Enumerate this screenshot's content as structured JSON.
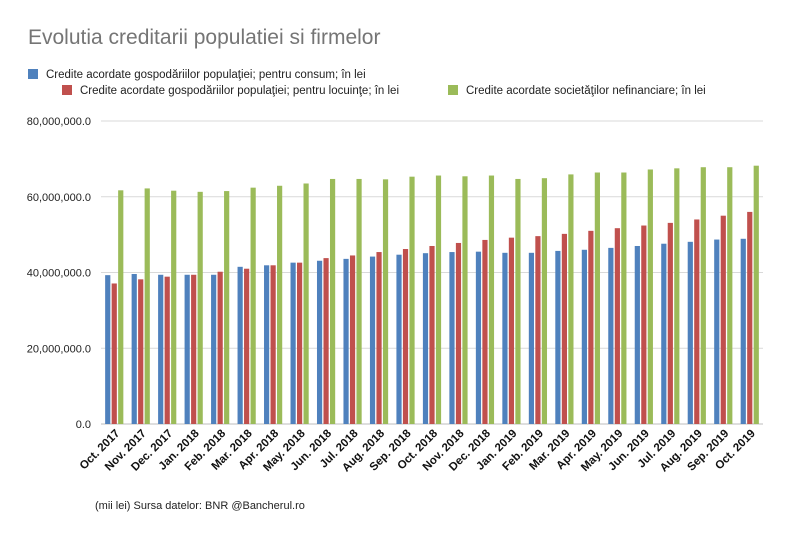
{
  "chart_data": {
    "type": "bar",
    "title": "Evolutia creditarii populatiei si firmelor",
    "xlabel": "",
    "ylabel": "",
    "ylim": [
      0,
      80000000
    ],
    "y_ticks": [
      "80,000,000.0",
      "60,000,000.0",
      "40,000,000.0",
      "20,000,000.0",
      "0.0"
    ],
    "y_tick_values": [
      80000000,
      60000000,
      40000000,
      20000000,
      0
    ],
    "grid": true,
    "legend_position": "top",
    "categories": [
      "Oct. 2017",
      "Nov. 2017",
      "Dec. 2017",
      "Jan. 2018",
      "Feb. 2018",
      "Mar. 2018",
      "Apr. 2018",
      "May. 2018",
      "Jun. 2018",
      "Jul. 2018",
      "Aug. 2018",
      "Sep. 2018",
      "Oct. 2018",
      "Nov. 2018",
      "Dec. 2018",
      "Jan. 2019",
      "Feb. 2019",
      "Mar. 2019",
      "Apr. 2019",
      "May. 2019",
      "Jun. 2019",
      "Jul. 2019",
      "Aug. 2019",
      "Sep. 2019",
      "Oct. 2019"
    ],
    "series": [
      {
        "name": "Credite acordate gospodăriilor populaţiei; pentru consum; în lei",
        "color": "#4f81bd",
        "values": [
          39300000,
          39600000,
          39400000,
          39400000,
          39400000,
          41500000,
          41900000,
          42600000,
          43100000,
          43600000,
          44200000,
          44700000,
          45100000,
          45400000,
          45500000,
          45200000,
          45200000,
          45700000,
          46000000,
          46500000,
          47000000,
          47600000,
          48100000,
          48700000,
          48900000
        ]
      },
      {
        "name": "Credite acordate gospodăriilor populaţiei; pentru locuinţe; în lei",
        "color": "#c0504d",
        "values": [
          37100000,
          38200000,
          38900000,
          39400000,
          40200000,
          41000000,
          41900000,
          42600000,
          43800000,
          44500000,
          45400000,
          46200000,
          47000000,
          47800000,
          48600000,
          49200000,
          49600000,
          50200000,
          51000000,
          51700000,
          52400000,
          53100000,
          54000000,
          55000000,
          56000000
        ]
      },
      {
        "name": "Credite acordate societăţilor nefinanciare; în lei",
        "color": "#9bbb59",
        "values": [
          61700000,
          62200000,
          61600000,
          61300000,
          61500000,
          62400000,
          62900000,
          63500000,
          64700000,
          64700000,
          64600000,
          65300000,
          65600000,
          65400000,
          65600000,
          64700000,
          64900000,
          65900000,
          66400000,
          66400000,
          67200000,
          67500000,
          67800000,
          67800000,
          68200000
        ]
      }
    ]
  },
  "source_note": "(mii lei) Sursa datelor: BNR @Bancherul.ro"
}
